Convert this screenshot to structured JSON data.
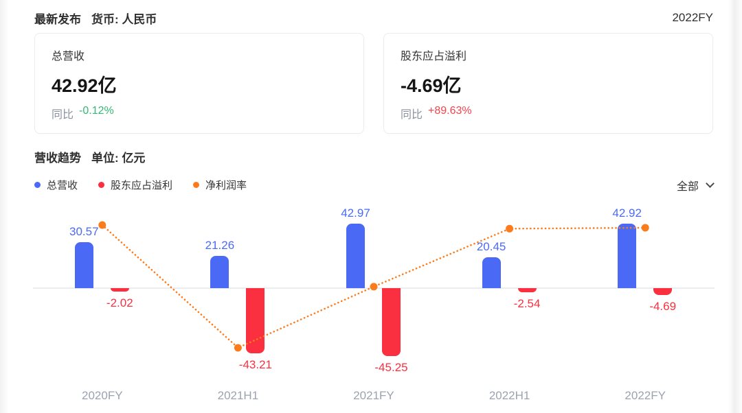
{
  "header": {
    "title": "最新发布",
    "currency_label": "货币: 人民币",
    "period": "2022FY"
  },
  "summary_cards": [
    {
      "title": "总营收",
      "value": "42.92亿",
      "yoy_label": "同比",
      "yoy_value": "-0.12%",
      "yoy_color": "#34b874"
    },
    {
      "title": "股东应占溢利",
      "value": "-4.69亿",
      "yoy_label": "同比",
      "yoy_value": "+89.63%",
      "yoy_color": "#f5424d"
    }
  ],
  "trend_section": {
    "title": "营收趋势",
    "unit_label": "单位: 亿元",
    "filter": {
      "label": "全部"
    },
    "legend": [
      {
        "label": "总营收",
        "color": "#4a6af5"
      },
      {
        "label": "股东应占溢利",
        "color": "#fa2f3f"
      },
      {
        "label": "净利润率",
        "color": "#fb7c1d"
      }
    ]
  },
  "chart_data": {
    "type": "bar",
    "categories": [
      "2020FY",
      "2021H1",
      "2021FY",
      "2022H1",
      "2022FY"
    ],
    "series": [
      {
        "name": "总营收",
        "type": "bar",
        "color": "#4a6af5",
        "values": [
          30.57,
          21.26,
          42.97,
          20.45,
          42.92
        ]
      },
      {
        "name": "股东应占溢利",
        "type": "bar",
        "color": "#fa2f3f",
        "values": [
          -2.02,
          -43.21,
          -45.25,
          -2.54,
          -4.69
        ]
      },
      {
        "name": "净利润率",
        "type": "line",
        "style": "dotted",
        "color": "#fb7c1d",
        "axis": "hidden-percent",
        "values": [
          -6.61,
          -203.25,
          -105.31,
          -12.42,
          -10.93
        ]
      }
    ],
    "title": "营收趋势",
    "ylabel": "亿元",
    "value_labels_shown": true,
    "grid": "zero-line-only",
    "legend_position": "top-left"
  }
}
